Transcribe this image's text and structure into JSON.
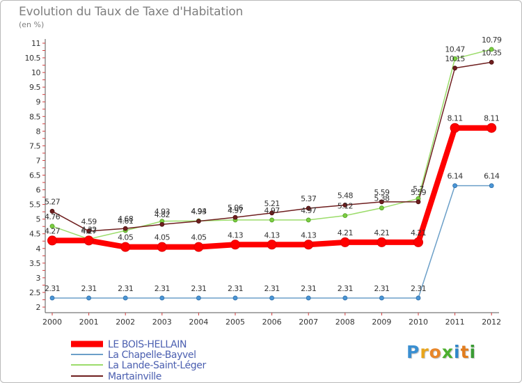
{
  "page": {
    "title": "Evolution du Taux de Taxe d'Habitation",
    "subtitle": "(en %)"
  },
  "brand": {
    "letters": [
      "P",
      "r",
      "o",
      "x",
      "i",
      "t",
      "i"
    ],
    "colors": [
      "#3a8fd1",
      "#e8a51d",
      "#e8862a",
      "#4caf2e",
      "#2f86c9",
      "#e27d1e",
      "#3a9c34"
    ]
  },
  "chart_data": {
    "type": "line",
    "title": "Evolution du Taux de Taxe d'Habitation",
    "subtitle": "(en %)",
    "xlabel": "",
    "ylabel": "",
    "grid": false,
    "legend_position": "bottom-left",
    "ylim": [
      2,
      11
    ],
    "y_ticks": [
      "2",
      "2.5",
      "3",
      "3.5",
      "4",
      "4.5",
      "5",
      "5.5",
      "6",
      "6.5",
      "7",
      "7.5",
      "8",
      "8.5",
      "9",
      "9.5",
      "10",
      "10.5",
      "11"
    ],
    "categories": [
      "2000",
      "2001",
      "2002",
      "2003",
      "2004",
      "2005",
      "2006",
      "2007",
      "2008",
      "2009",
      "2010",
      "2011",
      "2012"
    ],
    "series": [
      {
        "name": "LE BOIS-HELLAIN",
        "color": "#ff0000",
        "values": [
          4.27,
          4.27,
          4.05,
          4.05,
          4.05,
          4.13,
          4.13,
          4.13,
          4.21,
          4.21,
          4.21,
          8.11,
          8.11
        ],
        "labels": [
          "4.27",
          "4.27",
          "4.05",
          "4.05",
          "4.05",
          "4.13",
          "4.13",
          "4.13",
          "4.21",
          "4.21",
          "4.21",
          "8.11",
          "8.11"
        ]
      },
      {
        "name": "La Chapelle-Bayvel",
        "color": "#6b9fc8",
        "values": [
          2.31,
          2.31,
          2.31,
          2.31,
          2.31,
          2.31,
          2.31,
          2.31,
          2.31,
          2.31,
          2.31,
          6.14,
          6.14
        ],
        "labels": [
          "2.31",
          "2.31",
          "2.31",
          "2.31",
          "2.31",
          "2.31",
          "2.31",
          "2.31",
          "2.31",
          "2.31",
          "2.31",
          "6.14",
          "6.14"
        ]
      },
      {
        "name": "La Lande-Saint-Léger",
        "color": "#9bdc6a",
        "values": [
          4.76,
          4.32,
          4.61,
          4.93,
          4.94,
          4.97,
          4.97,
          4.97,
          5.12,
          5.38,
          5.7,
          10.47,
          10.79
        ],
        "labels": [
          "4.76",
          "4.32",
          "4.61",
          "4.93",
          "4.94",
          "4.97",
          "4.97",
          "4.97",
          "5.12",
          "5.38",
          "5.7",
          "10.47",
          "10.79"
        ]
      },
      {
        "name": "Martainville",
        "color": "#6e1e1e",
        "values": [
          5.27,
          4.59,
          4.68,
          4.82,
          4.93,
          5.06,
          5.21,
          5.37,
          5.48,
          5.59,
          5.59,
          10.15,
          10.35
        ],
        "labels": [
          "5.27",
          "4.59",
          "4.68",
          "4.82",
          "4.93",
          "5.06",
          "5.21",
          "5.37",
          "5.48",
          "5.59",
          "5.59",
          "10.15",
          "10.35"
        ]
      }
    ]
  }
}
